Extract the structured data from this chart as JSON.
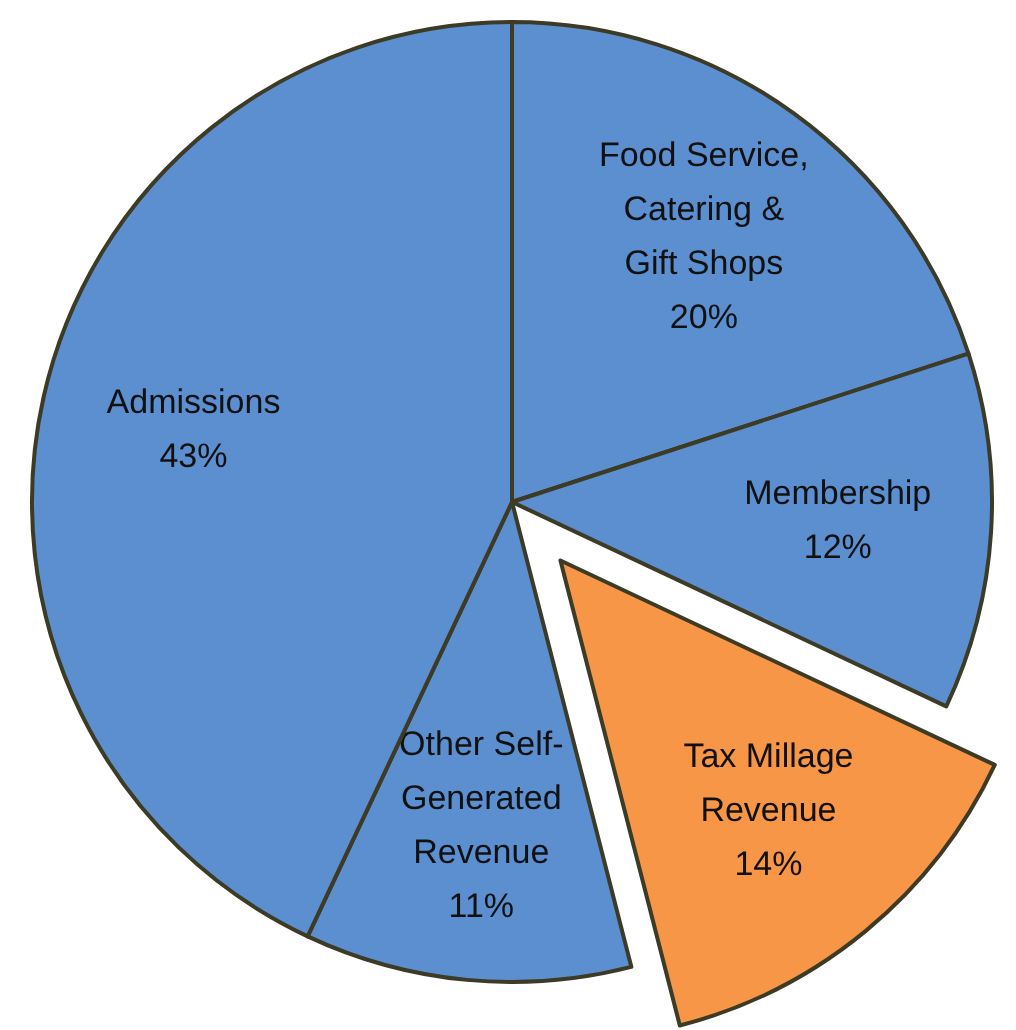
{
  "chart_data": {
    "type": "pie",
    "categories": [
      "Food Service, Catering & Gift Shops",
      "Membership",
      "Tax Millage Revenue",
      "Other Self-Generated Revenue",
      "Admissions"
    ],
    "values": [
      20,
      12,
      14,
      11,
      43
    ],
    "value_labels": [
      "20%",
      "12%",
      "14%",
      "11%",
      "43%"
    ],
    "colors": [
      "#5b8fd0",
      "#5b8fd0",
      "#f79646",
      "#5b8fd0",
      "#5b8fd0"
    ]
  }
}
